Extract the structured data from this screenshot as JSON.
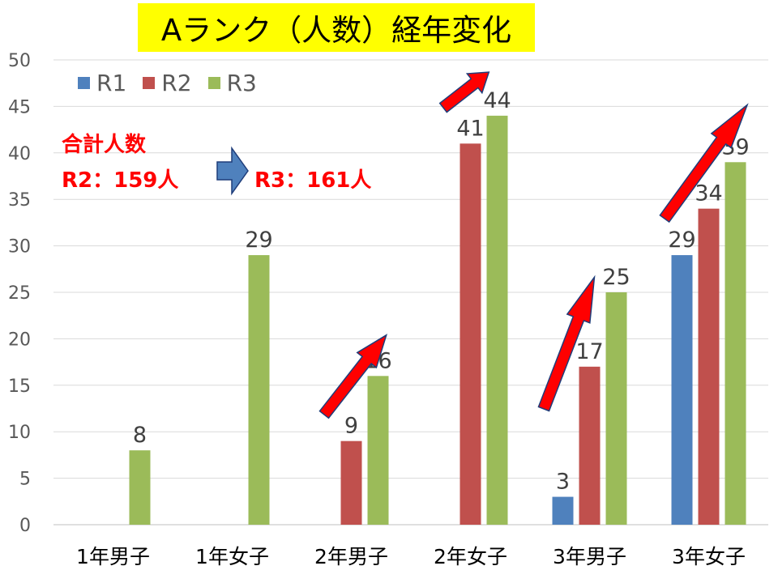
{
  "title": "Aランク（人数）経年変化",
  "note": {
    "line1": "合計人数",
    "r2_total": "R2：159人",
    "r3_total": "R3：161人"
  },
  "colors": {
    "R1": "#4f81bd",
    "R2": "#c0504d",
    "R3": "#9bbb59",
    "title_bg": "#ffff00",
    "note_text": "#ff0000",
    "arrow_fill": "#ff0000",
    "arrow_stroke": "#1f3d7a",
    "block_arrow": "#4f81bd"
  },
  "chart_data": {
    "type": "bar",
    "title": "Aランク（人数）経年変化",
    "categories": [
      "1年男子",
      "1年女子",
      "2年男子",
      "2年女子",
      "3年男子",
      "3年女子"
    ],
    "series": [
      {
        "name": "R1",
        "values": [
          null,
          null,
          null,
          null,
          3,
          29
        ]
      },
      {
        "name": "R2",
        "values": [
          null,
          null,
          9,
          41,
          17,
          34
        ]
      },
      {
        "name": "R3",
        "values": [
          8,
          29,
          16,
          44,
          25,
          39
        ]
      }
    ],
    "ylim": [
      0,
      50
    ],
    "yticks": [
      0,
      5,
      10,
      15,
      20,
      25,
      30,
      35,
      40,
      45,
      50
    ],
    "xlabel": "",
    "ylabel": "",
    "grid": true,
    "legend": "top-left",
    "data_labels": true
  }
}
